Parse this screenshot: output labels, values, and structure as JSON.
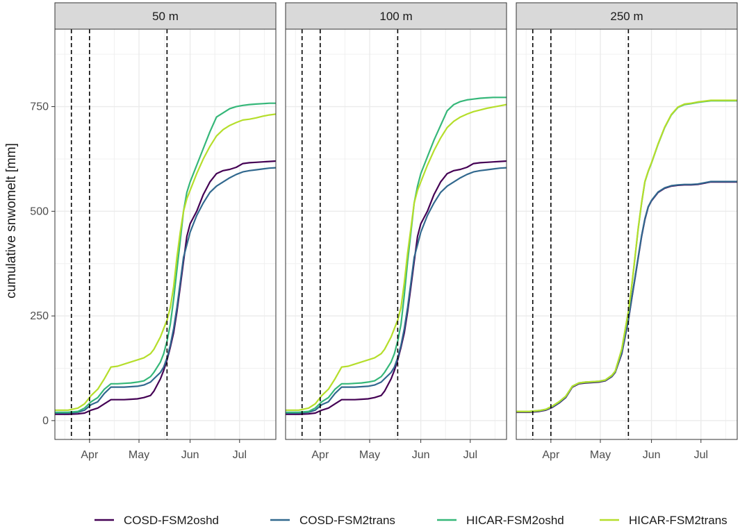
{
  "chart_data": {
    "type": "line",
    "ylabel": "cumulative snwomelt [mm]",
    "xlabel": "",
    "ylim": [
      -45,
      935
    ],
    "xlim": [
      70,
      204
    ],
    "y_ticks": [
      0,
      250,
      500,
      750
    ],
    "y_tick_labels": [
      "0",
      "250",
      "500",
      "750"
    ],
    "x_ticks": [
      91,
      121,
      152,
      182
    ],
    "x_tick_labels": [
      "Apr",
      "May",
      "Jun",
      "Jul"
    ],
    "vlines": [
      80,
      91,
      138
    ],
    "colors": {
      "COSD-FSM2oshd": "#440154",
      "COSD-FSM2trans": "#31688e",
      "HICAR-FSM2oshd": "#35b779",
      "HICAR-FSM2trans": "#b5de2b"
    },
    "legend": {
      "position": "bottom",
      "entries": [
        "COSD-FSM2oshd",
        "COSD-FSM2trans",
        "HICAR-FSM2oshd",
        "HICAR-FSM2trans"
      ]
    },
    "panels": [
      {
        "title": "50 m",
        "series": [
          {
            "name": "COSD-FSM2oshd",
            "x": [
              70,
              78,
              84,
              88,
              92,
              96,
              100,
              104,
              108,
              112,
              116,
              120,
              124,
              128,
              130,
              134,
              136,
              138,
              140,
              142,
              144,
              146,
              148,
              150,
              152,
              156,
              160,
              164,
              168,
              172,
              176,
              180,
              184,
              188,
              192,
              196,
              200,
              204
            ],
            "y": [
              15,
              15,
              16,
              18,
              25,
              30,
              40,
              50,
              50,
              50,
              51,
              52,
              55,
              60,
              70,
              100,
              120,
              145,
              175,
              210,
              260,
              320,
              380,
              440,
              470,
              500,
              540,
              570,
              590,
              597,
              600,
              605,
              614,
              616,
              617,
              618,
              619,
              620
            ]
          },
          {
            "name": "COSD-FSM2trans",
            "x": [
              70,
              78,
              84,
              88,
              92,
              96,
              100,
              104,
              108,
              112,
              116,
              120,
              124,
              128,
              130,
              134,
              136,
              138,
              140,
              142,
              144,
              146,
              148,
              150,
              152,
              156,
              160,
              164,
              168,
              172,
              176,
              180,
              184,
              188,
              192,
              196,
              200,
              204
            ],
            "y": [
              18,
              18,
              20,
              25,
              38,
              45,
              65,
              80,
              80,
              80,
              81,
              82,
              85,
              92,
              100,
              115,
              128,
              150,
              180,
              220,
              270,
              330,
              390,
              420,
              450,
              490,
              520,
              545,
              560,
              570,
              580,
              588,
              594,
              597,
              599,
              601,
              603,
              604
            ]
          },
          {
            "name": "HICAR-FSM2oshd",
            "x": [
              70,
              78,
              84,
              88,
              92,
              96,
              100,
              104,
              108,
              112,
              116,
              120,
              124,
              128,
              130,
              134,
              136,
              138,
              140,
              142,
              144,
              146,
              148,
              150,
              152,
              156,
              160,
              164,
              168,
              172,
              176,
              180,
              184,
              188,
              192,
              196,
              200,
              204
            ],
            "y": [
              20,
              20,
              22,
              30,
              45,
              55,
              75,
              88,
              88,
              89,
              90,
              92,
              95,
              105,
              115,
              140,
              160,
              190,
              230,
              290,
              360,
              430,
              500,
              545,
              570,
              610,
              650,
              690,
              725,
              735,
              745,
              750,
              753,
              755,
              756,
              757,
              758,
              758
            ]
          },
          {
            "name": "HICAR-FSM2trans",
            "x": [
              70,
              78,
              84,
              88,
              92,
              96,
              100,
              104,
              108,
              112,
              116,
              120,
              124,
              128,
              130,
              134,
              136,
              138,
              140,
              142,
              144,
              146,
              148,
              150,
              152,
              156,
              160,
              164,
              168,
              172,
              176,
              180,
              184,
              188,
              192,
              196,
              200,
              204
            ],
            "y": [
              25,
              25,
              30,
              40,
              60,
              75,
              100,
              128,
              130,
              135,
              140,
              145,
              150,
              160,
              170,
              200,
              220,
              240,
              270,
              320,
              390,
              450,
              500,
              530,
              550,
              590,
              625,
              655,
              680,
              695,
              705,
              712,
              718,
              720,
              723,
              727,
              730,
              732
            ]
          }
        ]
      },
      {
        "title": "100 m",
        "series": [
          {
            "name": "COSD-FSM2oshd",
            "x": [
              70,
              78,
              84,
              88,
              92,
              96,
              100,
              104,
              108,
              112,
              116,
              120,
              124,
              128,
              130,
              134,
              136,
              138,
              140,
              142,
              144,
              146,
              148,
              150,
              152,
              156,
              160,
              164,
              168,
              172,
              176,
              180,
              184,
              188,
              192,
              196,
              200,
              204
            ],
            "y": [
              15,
              15,
              16,
              18,
              25,
              30,
              40,
              50,
              50,
              50,
              51,
              52,
              55,
              60,
              70,
              100,
              120,
              145,
              175,
              210,
              260,
              320,
              380,
              440,
              470,
              500,
              540,
              570,
              590,
              597,
              600,
              605,
              614,
              616,
              617,
              618,
              619,
              620
            ]
          },
          {
            "name": "COSD-FSM2trans",
            "x": [
              70,
              78,
              84,
              88,
              92,
              96,
              100,
              104,
              108,
              112,
              116,
              120,
              124,
              128,
              130,
              134,
              136,
              138,
              140,
              142,
              144,
              146,
              148,
              150,
              152,
              156,
              160,
              164,
              168,
              172,
              176,
              180,
              184,
              188,
              192,
              196,
              200,
              204
            ],
            "y": [
              18,
              18,
              20,
              25,
              38,
              45,
              65,
              80,
              80,
              80,
              81,
              82,
              85,
              92,
              100,
              115,
              128,
              150,
              180,
              220,
              270,
              330,
              390,
              420,
              450,
              490,
              520,
              545,
              560,
              570,
              580,
              588,
              594,
              597,
              599,
              601,
              603,
              604
            ]
          },
          {
            "name": "HICAR-FSM2oshd",
            "x": [
              70,
              78,
              84,
              88,
              92,
              96,
              100,
              104,
              108,
              112,
              116,
              120,
              124,
              128,
              130,
              134,
              136,
              138,
              140,
              142,
              144,
              146,
              148,
              150,
              152,
              156,
              160,
              164,
              168,
              172,
              176,
              180,
              184,
              188,
              192,
              196,
              200,
              204
            ],
            "y": [
              20,
              20,
              22,
              30,
              45,
              55,
              75,
              88,
              88,
              89,
              90,
              92,
              95,
              105,
              115,
              140,
              160,
              190,
              230,
              300,
              380,
              450,
              520,
              560,
              590,
              630,
              670,
              705,
              740,
              755,
              762,
              766,
              768,
              770,
              771,
              772,
              772,
              772
            ]
          },
          {
            "name": "HICAR-FSM2trans",
            "x": [
              70,
              78,
              84,
              88,
              92,
              96,
              100,
              104,
              108,
              112,
              116,
              120,
              124,
              128,
              130,
              134,
              136,
              138,
              140,
              142,
              144,
              146,
              148,
              150,
              152,
              156,
              160,
              164,
              168,
              172,
              176,
              180,
              184,
              188,
              192,
              196,
              200,
              204
            ],
            "y": [
              25,
              25,
              30,
              40,
              60,
              75,
              100,
              128,
              130,
              135,
              140,
              145,
              150,
              160,
              170,
              200,
              220,
              240,
              270,
              330,
              400,
              460,
              520,
              550,
              570,
              610,
              645,
              675,
              700,
              715,
              725,
              732,
              738,
              742,
              746,
              749,
              752,
              755
            ]
          }
        ]
      },
      {
        "title": "250 m",
        "series": [
          {
            "name": "COSD-FSM2oshd",
            "x": [
              70,
              78,
              84,
              88,
              92,
              96,
              100,
              104,
              108,
              112,
              116,
              120,
              124,
              128,
              130,
              134,
              136,
              138,
              140,
              142,
              144,
              146,
              148,
              150,
              152,
              156,
              160,
              164,
              168,
              172,
              176,
              180,
              184,
              188,
              192,
              196,
              200,
              204
            ],
            "y": [
              20,
              20,
              22,
              25,
              32,
              42,
              55,
              80,
              88,
              90,
              91,
              92,
              95,
              105,
              115,
              160,
              200,
              240,
              290,
              340,
              390,
              440,
              480,
              510,
              525,
              545,
              555,
              560,
              562,
              563,
              563,
              564,
              567,
              570,
              570,
              570,
              570,
              570
            ]
          },
          {
            "name": "COSD-FSM2trans",
            "x": [
              70,
              78,
              84,
              88,
              92,
              96,
              100,
              104,
              108,
              112,
              116,
              120,
              124,
              128,
              130,
              134,
              136,
              138,
              140,
              142,
              144,
              146,
              148,
              150,
              152,
              156,
              160,
              164,
              168,
              172,
              176,
              180,
              184,
              188,
              192,
              196,
              200,
              204
            ],
            "y": [
              21,
              21,
              23,
              26,
              33,
              43,
              56,
              81,
              89,
              91,
              92,
              93,
              96,
              106,
              116,
              162,
              202,
              242,
              292,
              342,
              392,
              442,
              482,
              511,
              526,
              546,
              556,
              561,
              563,
              564,
              564,
              565,
              568,
              571,
              571,
              571,
              571,
              571
            ]
          },
          {
            "name": "HICAR-FSM2oshd",
            "x": [
              70,
              78,
              84,
              88,
              92,
              96,
              100,
              104,
              108,
              112,
              116,
              120,
              124,
              128,
              130,
              134,
              136,
              138,
              140,
              142,
              144,
              146,
              148,
              150,
              152,
              156,
              160,
              164,
              168,
              172,
              176,
              180,
              184,
              188,
              192,
              196,
              200,
              204
            ],
            "y": [
              22,
              22,
              24,
              27,
              35,
              45,
              58,
              82,
              90,
              92,
              93,
              94,
              97,
              108,
              118,
              170,
              215,
              260,
              320,
              390,
              460,
              520,
              570,
              595,
              615,
              660,
              700,
              730,
              748,
              755,
              757,
              760,
              762,
              764,
              764,
              764,
              764,
              764
            ]
          },
          {
            "name": "HICAR-FSM2trans",
            "x": [
              70,
              78,
              84,
              88,
              92,
              96,
              100,
              104,
              108,
              112,
              116,
              120,
              124,
              128,
              130,
              134,
              136,
              138,
              140,
              142,
              144,
              146,
              148,
              150,
              152,
              156,
              160,
              164,
              168,
              172,
              176,
              180,
              184,
              188,
              192,
              196,
              200,
              204
            ],
            "y": [
              22,
              22,
              24,
              27,
              35,
              45,
              58,
              82,
              90,
              92,
              93,
              94,
              97,
              108,
              118,
              171,
              216,
              261,
              321,
              391,
              461,
              521,
              571,
              596,
              616,
              661,
              701,
              731,
              749,
              756,
              758,
              761,
              763,
              765,
              765,
              765,
              765,
              765
            ]
          }
        ]
      }
    ]
  }
}
